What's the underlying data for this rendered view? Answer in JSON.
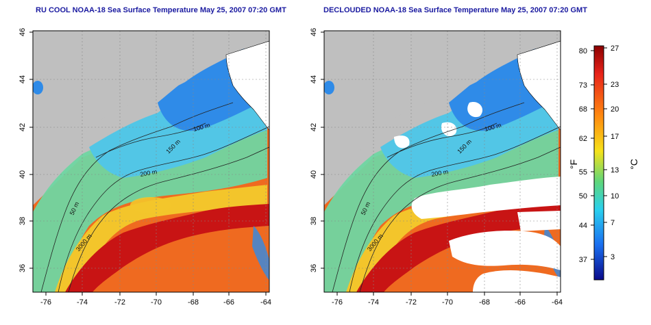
{
  "panels": [
    {
      "title": "RU COOL NOAA-18 Sea Surface Temperature May 25, 2007 07:20 GMT",
      "contour_labels": [
        "100 m",
        "150 m",
        "200 m",
        "50 m",
        "3000 m"
      ]
    },
    {
      "title": "DECLOUDED NOAA-18 Sea Surface Temperature May 25, 2007 07:20 GMT",
      "contour_labels": [
        "100 m",
        "150 m",
        "200 m",
        "50 m",
        "3000 m"
      ]
    }
  ],
  "axes": {
    "x_ticks": [
      "-76",
      "-74",
      "-72",
      "-70",
      "-68",
      "-66",
      "-64"
    ],
    "y_ticks": [
      "46",
      "44",
      "42",
      "40",
      "38",
      "36"
    ]
  },
  "colorbar": {
    "unit_f": "°F",
    "unit_c": "°C",
    "f_ticks": [
      "80",
      "73",
      "68",
      "62",
      "55",
      "50",
      "44",
      "37"
    ],
    "c_ticks": [
      "27",
      "23",
      "20",
      "17",
      "13",
      "10",
      "7",
      "3"
    ],
    "colors": {
      "top": "#8b0000",
      "red": "#e8231a",
      "orange": "#ff8a10",
      "yellow": "#f6e21a",
      "green": "#5fd67a",
      "cyan": "#2ad0ee",
      "blue": "#1a6ff0",
      "bottom": "#0a0a8a"
    }
  },
  "map_colors": {
    "land": "#bfbfbf",
    "cloud": "#ffffff",
    "cold": "#2f8be8",
    "cool": "#52c6e6",
    "mid": "#6fd6a2",
    "warm": "#f3c52b",
    "hot": "#ef6a20",
    "gulfstream": "#c81414"
  }
}
